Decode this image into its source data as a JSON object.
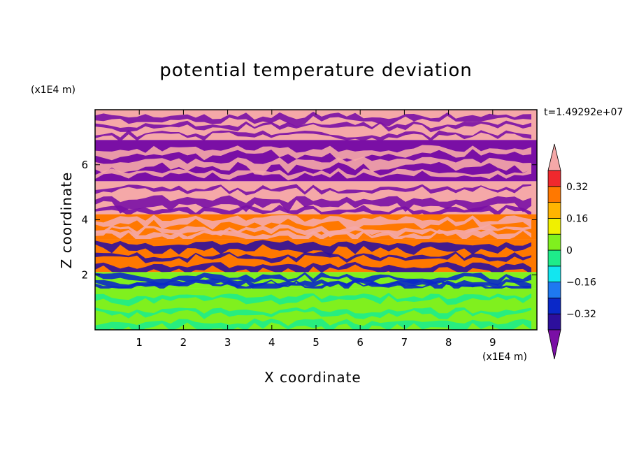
{
  "chart_data": {
    "type": "heatmap",
    "title": "potential temperature deviation",
    "xlabel": "X coordinate",
    "ylabel": "Z coordinate",
    "x_unit": "(x1E4 m)",
    "y_unit": "(x1E4 m)",
    "time_label": "t=1.49292e+07",
    "xlim": [
      0,
      10
    ],
    "ylim": [
      0,
      8
    ],
    "x_ticks": [
      1,
      2,
      3,
      4,
      5,
      6,
      7,
      8,
      9
    ],
    "y_ticks": [
      2,
      4,
      6
    ],
    "colorbar": {
      "levels": [
        -0.4,
        -0.32,
        -0.24,
        -0.16,
        -0.08,
        0,
        0.08,
        0.16,
        0.24,
        0.32,
        0.4
      ],
      "tick_labels": [
        {
          "value": 0.32,
          "label": "0.32"
        },
        {
          "value": 0.16,
          "label": "0.16"
        },
        {
          "value": 0,
          "label": "0"
        },
        {
          "value": -0.16,
          "label": "−0.16"
        },
        {
          "value": -0.32,
          "label": "−0.32"
        }
      ],
      "colors": [
        "#7a0fa5",
        "#2d0f9c",
        "#0a28c8",
        "#1e78f0",
        "#12e6f0",
        "#1eec8a",
        "#80f01e",
        "#f0f000",
        "#ffb400",
        "#ff7800",
        "#f0282d",
        "#f5a8a8"
      ],
      "extend": "both"
    },
    "bands": [
      {
        "z_min": 6.9,
        "z_max": 8.0,
        "dominant": "#f5a8a8",
        "secondary": "#7a0fa5"
      },
      {
        "z_min": 5.4,
        "z_max": 6.9,
        "dominant": "#7a0fa5",
        "secondary": "#f5a8a8"
      },
      {
        "z_min": 4.2,
        "z_max": 5.4,
        "dominant": "#f5a8a8",
        "secondary": "#7a0fa5"
      },
      {
        "z_min": 3.3,
        "z_max": 4.2,
        "dominant": "#ff7800",
        "secondary": "#f5a8a8"
      },
      {
        "z_min": 2.1,
        "z_max": 3.3,
        "dominant": "#ff7800",
        "secondary": "#2d0f9c"
      },
      {
        "z_min": 1.5,
        "z_max": 2.1,
        "dominant": "#80f01e",
        "secondary": "#0a28c8"
      },
      {
        "z_min": 0.0,
        "z_max": 1.5,
        "dominant": "#80f01e",
        "secondary": "#1eec8a"
      }
    ]
  }
}
